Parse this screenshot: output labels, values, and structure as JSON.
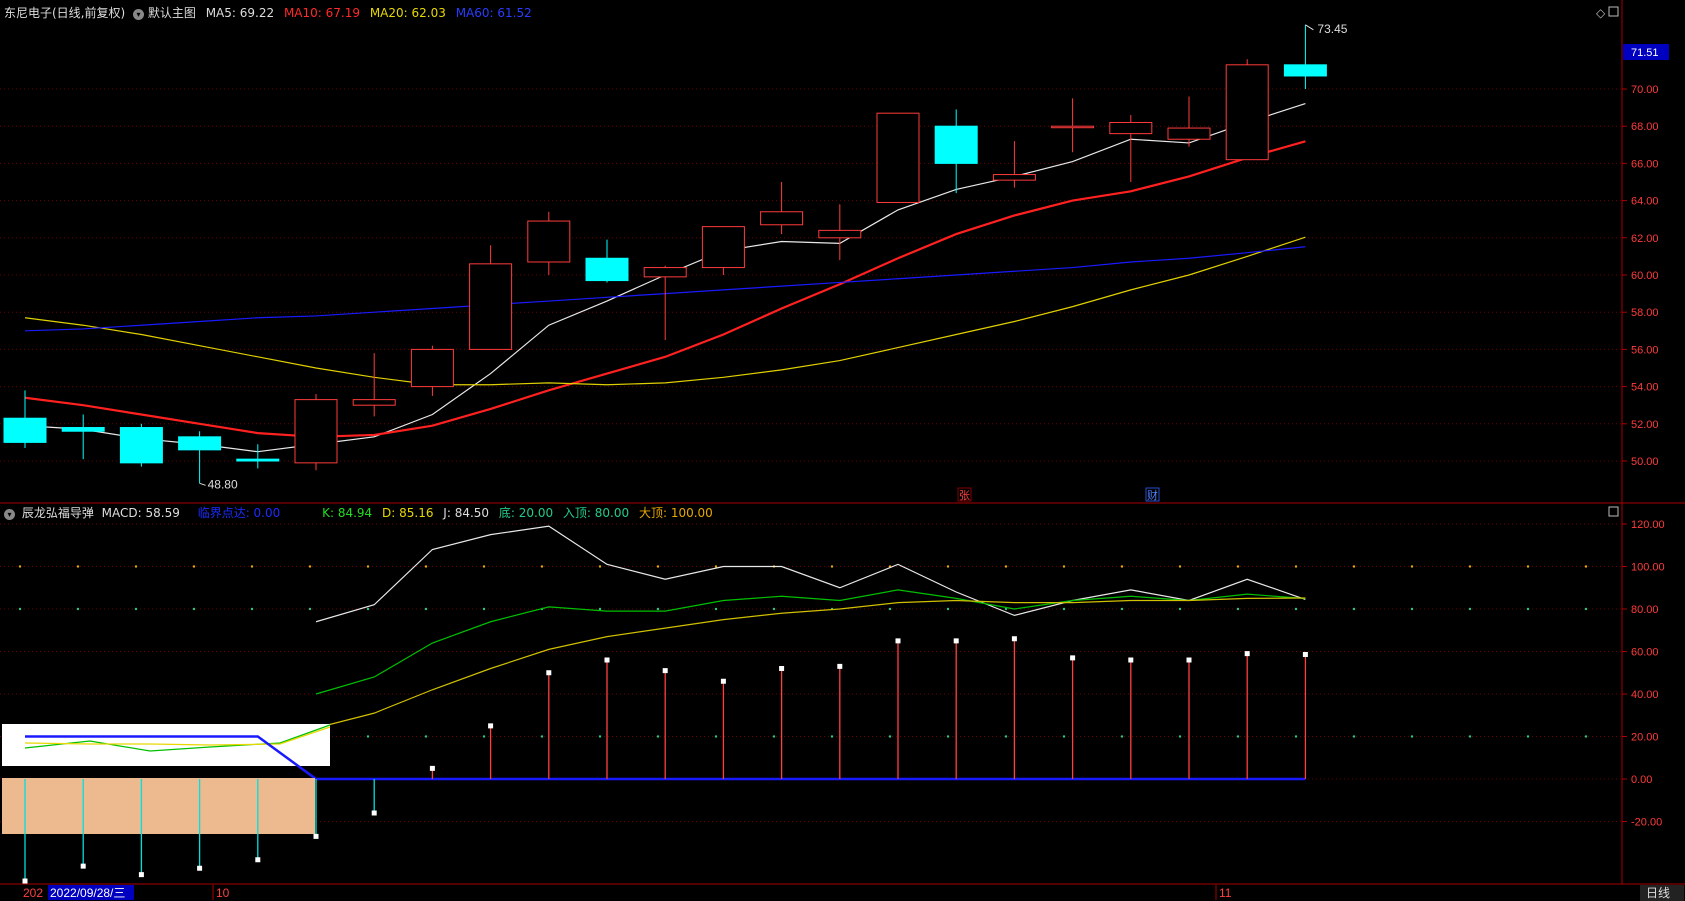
{
  "main_header": {
    "stock": "东尼电子(日线,前复权)",
    "view": "默认主图",
    "ma5": "MA5: 69.22",
    "ma10": "MA10: 67.19",
    "ma20": "MA20: 62.03",
    "ma60": "MA60: 61.52"
  },
  "sub_header": {
    "indicator": "辰龙弘福导弹",
    "macd": "MACD: 58.59",
    "signal": "临界点达: 0.00",
    "k": "K: 84.94",
    "d": "D: 85.16",
    "j": "J: 84.50",
    "bottom": "底: 20.00",
    "entry": "入顶: 80.00",
    "top": "大顶: 100.00"
  },
  "price_label": "71.51",
  "bottom_bar": {
    "year_prefix": "202",
    "date": "2022/09/28/三",
    "month_oct": "10",
    "month_nov": "11",
    "period": "日线"
  },
  "markers": {
    "zhang": "张",
    "cai": "财"
  },
  "colors": {
    "up": "#ff3b3b",
    "down": "#00ffff",
    "ma5": "#e8e8e8",
    "ma10": "#ff2020",
    "ma20": "#e0d000",
    "ma60": "#1a1aff",
    "k": "#e8e8e8",
    "d": "#00c000",
    "j": "#d0c000",
    "axis": "#aa0000"
  },
  "chart_data": [
    {
      "type": "candlestick",
      "title": "东尼电子(日线,前复权)",
      "ylim": [
        48,
        74
      ],
      "yticks": [
        "50.00",
        "52.00",
        "54.00",
        "56.00",
        "58.00",
        "60.00",
        "62.00",
        "64.00",
        "66.00",
        "68.00",
        "70.00"
      ],
      "candles": [
        {
          "o": 52.3,
          "c": 51.0,
          "h": 53.8,
          "l": 50.7
        },
        {
          "o": 51.8,
          "c": 51.6,
          "h": 52.5,
          "l": 50.1
        },
        {
          "o": 51.8,
          "c": 49.9,
          "h": 52.0,
          "l": 49.7
        },
        {
          "o": 51.3,
          "c": 50.6,
          "h": 51.6,
          "l": 48.8
        },
        {
          "o": 50.1,
          "c": 50.0,
          "h": 50.9,
          "l": 49.6
        },
        {
          "o": 49.9,
          "c": 53.3,
          "h": 53.6,
          "l": 49.5
        },
        {
          "o": 53.0,
          "c": 53.3,
          "h": 55.8,
          "l": 52.4
        },
        {
          "o": 54.0,
          "c": 56.0,
          "h": 56.2,
          "l": 53.5
        },
        {
          "o": 56.0,
          "c": 60.6,
          "h": 61.6,
          "l": 56.0
        },
        {
          "o": 60.7,
          "c": 62.9,
          "h": 63.4,
          "l": 60.0
        },
        {
          "o": 60.9,
          "c": 59.7,
          "h": 61.9,
          "l": 59.6
        },
        {
          "o": 59.9,
          "c": 60.4,
          "h": 60.5,
          "l": 56.5
        },
        {
          "o": 60.4,
          "c": 62.6,
          "h": 62.6,
          "l": 60.0
        },
        {
          "o": 62.7,
          "c": 63.4,
          "h": 65.0,
          "l": 62.2
        },
        {
          "o": 62.0,
          "c": 62.4,
          "h": 63.8,
          "l": 60.8
        },
        {
          "o": 63.9,
          "c": 68.7,
          "h": 68.7,
          "l": 63.9
        },
        {
          "o": 68.0,
          "c": 66.0,
          "h": 68.9,
          "l": 64.4
        },
        {
          "o": 65.1,
          "c": 65.4,
          "h": 67.2,
          "l": 64.7
        },
        {
          "o": 68.0,
          "c": 68.0,
          "h": 69.5,
          "l": 66.6
        },
        {
          "o": 67.6,
          "c": 68.2,
          "h": 68.6,
          "l": 65.0
        },
        {
          "o": 67.3,
          "c": 67.9,
          "h": 69.6,
          "l": 66.9
        },
        {
          "o": 66.2,
          "c": 71.3,
          "h": 71.6,
          "l": 66.2
        },
        {
          "o": 71.3,
          "c": 70.7,
          "h": 73.45,
          "l": 70.0
        }
      ],
      "annotations": [
        {
          "label": "73.45"
        },
        {
          "label": "48.80"
        }
      ],
      "series": [
        {
          "name": "MA5",
          "values": [
            51.9,
            51.7,
            51.2,
            50.9,
            50.5,
            50.9,
            51.3,
            52.5,
            54.7,
            57.3,
            58.6,
            60.0,
            61.3,
            61.8,
            61.7,
            63.5,
            64.6,
            65.3,
            66.1,
            67.3,
            67.1,
            68.2,
            69.22
          ]
        },
        {
          "name": "MA10",
          "values": [
            53.4,
            53.0,
            52.5,
            52.0,
            51.5,
            51.3,
            51.4,
            51.9,
            52.8,
            53.8,
            54.7,
            55.6,
            56.8,
            58.2,
            59.5,
            60.9,
            62.2,
            63.2,
            64.0,
            64.5,
            65.3,
            66.3,
            67.19
          ]
        },
        {
          "name": "MA20",
          "values": [
            57.7,
            57.3,
            56.8,
            56.2,
            55.6,
            55.0,
            54.5,
            54.1,
            54.1,
            54.2,
            54.1,
            54.2,
            54.5,
            54.9,
            55.4,
            56.1,
            56.8,
            57.5,
            58.3,
            59.2,
            60.0,
            61.0,
            62.03
          ]
        },
        {
          "name": "MA60",
          "values": [
            57.0,
            57.1,
            57.3,
            57.5,
            57.7,
            57.8,
            58.0,
            58.2,
            58.4,
            58.6,
            58.8,
            59.0,
            59.2,
            59.4,
            59.6,
            59.8,
            60.0,
            60.2,
            60.4,
            60.7,
            60.9,
            61.2,
            61.52
          ]
        }
      ]
    },
    {
      "type": "line",
      "title": "辰龙弘福导弹",
      "ylim": [
        -50,
        125
      ],
      "yticks": [
        "-20.00",
        "0.00",
        "20.00",
        "40.00",
        "60.00",
        "80.00",
        "100.00",
        "120.00"
      ],
      "levels": [
        20,
        80,
        100
      ],
      "series": [
        {
          "name": "K",
          "values": [
            null,
            null,
            null,
            null,
            null,
            40,
            48,
            64,
            74,
            81,
            79,
            79,
            84,
            86,
            84,
            89,
            85,
            80,
            84,
            86,
            84,
            87,
            84.94
          ]
        },
        {
          "name": "D",
          "values": [
            null,
            null,
            null,
            null,
            null,
            24,
            31,
            42,
            52,
            61,
            67,
            71,
            75,
            78,
            80,
            83,
            84,
            83,
            83,
            84,
            84,
            85,
            85.16
          ]
        },
        {
          "name": "J",
          "values": [
            null,
            null,
            null,
            null,
            null,
            74,
            82,
            108,
            115,
            119,
            101,
            94,
            100,
            100,
            90,
            101,
            88,
            77,
            84,
            89,
            84,
            94,
            84.5
          ]
        },
        {
          "name": "临界点达",
          "values": [
            20,
            20,
            20,
            20,
            20,
            0,
            0,
            0,
            0,
            0,
            0,
            0,
            0,
            0,
            0,
            0,
            0,
            0,
            0,
            0,
            0,
            0,
            0
          ]
        }
      ],
      "bars": [
        -48,
        -41,
        -45,
        -42,
        -38,
        -27,
        -16,
        5,
        25,
        50,
        56,
        51,
        46,
        52,
        53,
        65,
        65,
        66,
        57,
        56,
        56,
        59,
        58.59
      ]
    }
  ]
}
